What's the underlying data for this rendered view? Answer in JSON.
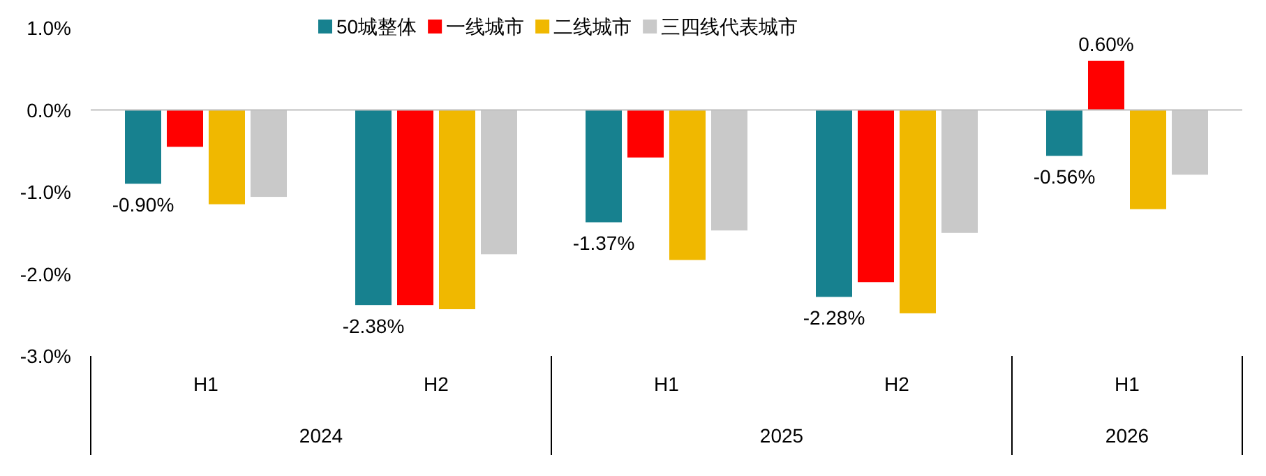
{
  "chart_data": {
    "type": "bar",
    "categories": [
      "H1",
      "H2",
      "H1",
      "H2",
      "H1"
    ],
    "annotations": [
      "2024",
      "2025",
      "2026"
    ],
    "ylim": [
      -3,
      1
    ],
    "yticks": [
      {
        "value": 1,
        "label": "1.0%"
      },
      {
        "value": 0,
        "label": "0.0%"
      },
      {
        "value": -1,
        "label": "-1.0%"
      },
      {
        "value": -2,
        "label": "-2.0%"
      },
      {
        "value": -3,
        "label": "-3.0%"
      }
    ],
    "legend": "top",
    "series": [
      {
        "name": "50城整体",
        "color": "#17818f",
        "values": [
          -0.9,
          -2.38,
          -1.37,
          -2.28,
          -0.56
        ],
        "value_labels": [
          "-0.90%",
          "-2.38%",
          "-1.37%",
          "-2.28%",
          "-0.56%"
        ]
      },
      {
        "name": "一线城市",
        "color": "#ff0000",
        "values": [
          -0.45,
          -2.38,
          -0.58,
          -2.1,
          0.6
        ],
        "value_labels": [
          null,
          null,
          null,
          null,
          "0.60%"
        ]
      },
      {
        "name": "二线城市",
        "color": "#f0b800",
        "values": [
          -1.15,
          -2.43,
          -1.83,
          -2.48,
          -1.21
        ]
      },
      {
        "name": "三四线代表城市",
        "color": "#c9c9c9",
        "values": [
          -1.06,
          -1.76,
          -1.47,
          -1.5,
          -0.79
        ]
      }
    ]
  }
}
